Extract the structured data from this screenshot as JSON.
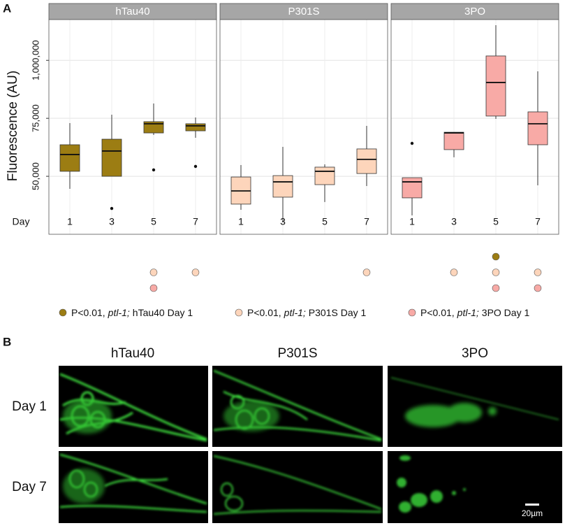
{
  "chart_data": {
    "type": "box",
    "panel_label": "A",
    "ylabel": "Fluorescence (AU)",
    "x_prefix": "Day",
    "categories": [
      "1",
      "3",
      "5",
      "7"
    ],
    "ylim": [
      25000,
      1650000
    ],
    "yticks": [
      {
        "value": 50000,
        "label": "50,000"
      },
      {
        "value": 75000,
        "label": "75,000"
      },
      {
        "value": 1000000,
        "label": "1,000,000"
      }
    ],
    "grid": true,
    "panels": [
      {
        "name": "hTau40",
        "color": "#9c7d13",
        "boxes": [
          {
            "low": 44600,
            "q1": 52150,
            "median": 59400,
            "q3": 63600,
            "high": 72950,
            "outliers": []
          },
          {
            "low": 50000,
            "q1": 50000,
            "median": 60900,
            "q3": 66000,
            "high": 133000,
            "outliers": [
              36150
            ]
          },
          {
            "low": 67800,
            "q1": 68700,
            "median": 72650,
            "q3": 73550,
            "high": 311800,
            "outliers": [
              52750
            ]
          },
          {
            "low": 66600,
            "q1": 69600,
            "median": 71750,
            "q3": 72650,
            "high": 88000,
            "outliers": [
              54250
            ]
          }
        ]
      },
      {
        "name": "P301S",
        "color": "#fdd5bb",
        "boxes": [
          {
            "low": 35550,
            "q1": 38000,
            "median": 43700,
            "q3": 49700,
            "high": 54850,
            "outliers": []
          },
          {
            "low": 30100,
            "q1": 41000,
            "median": 47600,
            "q3": 50300,
            "high": 62700,
            "outliers": []
          },
          {
            "low": 38900,
            "q1": 46400,
            "median": 52150,
            "q3": 53950,
            "high": 55150,
            "outliers": []
          },
          {
            "low": 45800,
            "q1": 51200,
            "median": 57300,
            "q3": 61800,
            "high": 71750,
            "outliers": []
          }
        ]
      },
      {
        "name": "3PO",
        "color": "#f8aaa6",
        "boxes": [
          {
            "low": 33150,
            "q1": 40700,
            "median": 47600,
            "q3": 49400,
            "high": 49400,
            "outliers": [
              64200
            ]
          },
          {
            "low": 58200,
            "q1": 61500,
            "median": 68700,
            "q3": 69000,
            "high": 69000,
            "outliers": []
          },
          {
            "low": 74750,
            "q1": 111000,
            "median": 646650,
            "q3": 1070000,
            "high": 1561000,
            "outliers": []
          },
          {
            "low": 46100,
            "q1": 63600,
            "median": 72650,
            "q3": 177700,
            "high": 825000,
            "outliers": []
          }
        ]
      }
    ],
    "significance": [
      [
        [],
        [],
        [
          1,
          2
        ],
        [
          1
        ]
      ],
      [
        [],
        [],
        [],
        [
          1
        ]
      ],
      [
        [],
        [
          1
        ],
        [
          0,
          1,
          2
        ],
        [
          1,
          2
        ]
      ]
    ],
    "legend": [
      {
        "color": "#9c7d13",
        "prefix": "P<0.01,",
        "gene": "ptl-1;",
        "label": "hTau40 Day 1"
      },
      {
        "color": "#fdd5bb",
        "prefix": "P<0.01,",
        "gene": "ptl-1;",
        "label": "P301S Day 1"
      },
      {
        "color": "#f8aaa6",
        "prefix": "P<0.01,",
        "gene": "ptl-1;",
        "label": "3PO Day 1"
      }
    ]
  },
  "panel_b": {
    "label": "B",
    "columns": [
      "hTau40",
      "P301S",
      "3PO"
    ],
    "rows": [
      "Day 1",
      "Day 7"
    ],
    "scale_bar": "20µm"
  }
}
